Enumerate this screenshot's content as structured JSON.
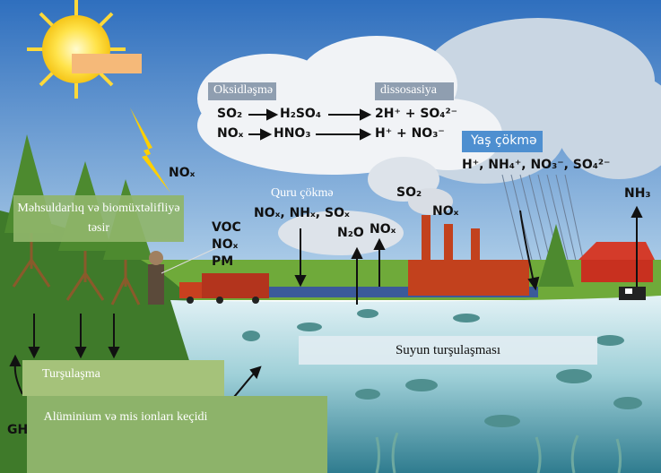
{
  "reactions": {
    "oxidation_title": "Oksidləşmə",
    "dissociation_title": "dissosasiya",
    "row1": [
      "SO₂",
      "H₂SO₄",
      "2H⁺ + SO₄²⁻"
    ],
    "row2": [
      "NOₓ",
      "HNO₃",
      "H⁺ + NO₃⁻"
    ]
  },
  "wet_deposition": {
    "title": "Yaş çökmə",
    "ions": "H⁺, NH₄⁺, NO₃⁻, SO₄²⁻"
  },
  "dry_deposition": {
    "title": "Quru çökmə",
    "species": "NOₓ, NHₓ, SOₓ"
  },
  "emissions": {
    "sun_nox": "NOₓ",
    "factory_so2": "SO₂",
    "factory_nox": "NOₓ",
    "n2o": "N₂O",
    "nox_up": "NOₓ",
    "farm_nh3": "NH₃",
    "vehicle": [
      "VOC",
      "NOₓ",
      "PM"
    ]
  },
  "effects": {
    "productivity": "Məhsuldarlıq və biomüxtəlifliyə təsir",
    "water_acidification": "Suyun turşulaşması",
    "acidification": "Turşulaşma",
    "metal_ions": "Alüminium və mis ionları keçidi",
    "ghg": "GH"
  }
}
